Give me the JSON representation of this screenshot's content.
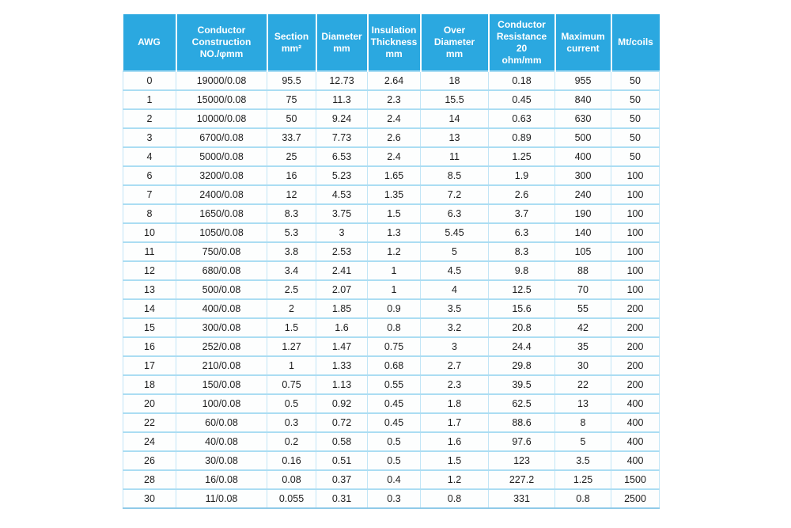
{
  "page": {
    "background": "#FFFFFF"
  },
  "table": {
    "colors": {
      "header_bg": "#2BA8E0",
      "header_text": "#FFFFFF",
      "row_divider": "#ABDDF3",
      "column_divider": "#C2E5F6",
      "bottom_border": "#8FCAE8",
      "cell_text": "#1F1F1F"
    },
    "columns": [
      {
        "id": "awg",
        "label": "AWG"
      },
      {
        "id": "conductor_construction",
        "label": "Conductor\nConstruction\nNO./φmm"
      },
      {
        "id": "section",
        "label": "Section\nmm²"
      },
      {
        "id": "diameter",
        "label": "Diameter\nmm"
      },
      {
        "id": "insulation_thickness",
        "label": "Insulation\nThickness\nmm"
      },
      {
        "id": "over_diameter",
        "label": "Over Diameter\nmm"
      },
      {
        "id": "conductor_resistance",
        "label": "Conductor\nResistance 20\nohm/mm"
      },
      {
        "id": "maximum_current",
        "label": "Maximum\ncurrent"
      },
      {
        "id": "mt_coils",
        "label": "Mt/coils"
      }
    ],
    "rows": [
      [
        "0",
        "19000/0.08",
        "95.5",
        "12.73",
        "2.64",
        "18",
        "0.18",
        "955",
        "50"
      ],
      [
        "1",
        "15000/0.08",
        "75",
        "11.3",
        "2.3",
        "15.5",
        "0.45",
        "840",
        "50"
      ],
      [
        "2",
        "10000/0.08",
        "50",
        "9.24",
        "2.4",
        "14",
        "0.63",
        "630",
        "50"
      ],
      [
        "3",
        "6700/0.08",
        "33.7",
        "7.73",
        "2.6",
        "13",
        "0.89",
        "500",
        "50"
      ],
      [
        "4",
        "5000/0.08",
        "25",
        "6.53",
        "2.4",
        "11",
        "1.25",
        "400",
        "50"
      ],
      [
        "6",
        "3200/0.08",
        "16",
        "5.23",
        "1.65",
        "8.5",
        "1.9",
        "300",
        "100"
      ],
      [
        "7",
        "2400/0.08",
        "12",
        "4.53",
        "1.35",
        "7.2",
        "2.6",
        "240",
        "100"
      ],
      [
        "8",
        "1650/0.08",
        "8.3",
        "3.75",
        "1.5",
        "6.3",
        "3.7",
        "190",
        "100"
      ],
      [
        "10",
        "1050/0.08",
        "5.3",
        "3",
        "1.3",
        "5.45",
        "6.3",
        "140",
        "100"
      ],
      [
        "11",
        "750/0.08",
        "3.8",
        "2.53",
        "1.2",
        "5",
        "8.3",
        "105",
        "100"
      ],
      [
        "12",
        "680/0.08",
        "3.4",
        "2.41",
        "1",
        "4.5",
        "9.8",
        "88",
        "100"
      ],
      [
        "13",
        "500/0.08",
        "2.5",
        "2.07",
        "1",
        "4",
        "12.5",
        "70",
        "100"
      ],
      [
        "14",
        "400/0.08",
        "2",
        "1.85",
        "0.9",
        "3.5",
        "15.6",
        "55",
        "200"
      ],
      [
        "15",
        "300/0.08",
        "1.5",
        "1.6",
        "0.8",
        "3.2",
        "20.8",
        "42",
        "200"
      ],
      [
        "16",
        "252/0.08",
        "1.27",
        "1.47",
        "0.75",
        "3",
        "24.4",
        "35",
        "200"
      ],
      [
        "17",
        "210/0.08",
        "1",
        "1.33",
        "0.68",
        "2.7",
        "29.8",
        "30",
        "200"
      ],
      [
        "18",
        "150/0.08",
        "0.75",
        "1.13",
        "0.55",
        "2.3",
        "39.5",
        "22",
        "200"
      ],
      [
        "20",
        "100/0.08",
        "0.5",
        "0.92",
        "0.45",
        "1.8",
        "62.5",
        "13",
        "400"
      ],
      [
        "22",
        "60/0.08",
        "0.3",
        "0.72",
        "0.45",
        "1.7",
        "88.6",
        "8",
        "400"
      ],
      [
        "24",
        "40/0.08",
        "0.2",
        "0.58",
        "0.5",
        "1.6",
        "97.6",
        "5",
        "400"
      ],
      [
        "26",
        "30/0.08",
        "0.16",
        "0.51",
        "0.5",
        "1.5",
        "123",
        "3.5",
        "400"
      ],
      [
        "28",
        "16/0.08",
        "0.08",
        "0.37",
        "0.4",
        "1.2",
        "227.2",
        "1.25",
        "1500"
      ],
      [
        "30",
        "11/0.08",
        "0.055",
        "0.31",
        "0.3",
        "0.8",
        "331",
        "0.8",
        "2500"
      ]
    ]
  }
}
